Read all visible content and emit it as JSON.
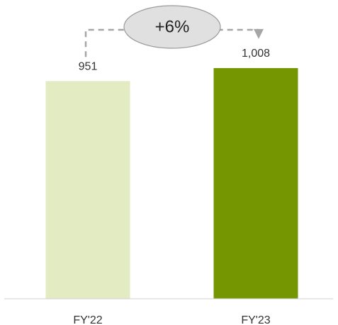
{
  "chart_data": {
    "type": "bar",
    "categories": [
      "FY'22",
      "FY'23"
    ],
    "values": [
      951,
      1008
    ],
    "value_labels": [
      "951",
      "1,008"
    ],
    "bar_colors": [
      "#e3ebc2",
      "#759600"
    ],
    "ylim": [
      0,
      1200
    ],
    "title": "",
    "xlabel": "",
    "ylabel": "",
    "grid": false,
    "annotation": {
      "text": "+6%",
      "from": "FY'22",
      "to": "FY'23",
      "bubble_color": "#e0e0e0",
      "connector_color": "#a6a6a6"
    }
  }
}
